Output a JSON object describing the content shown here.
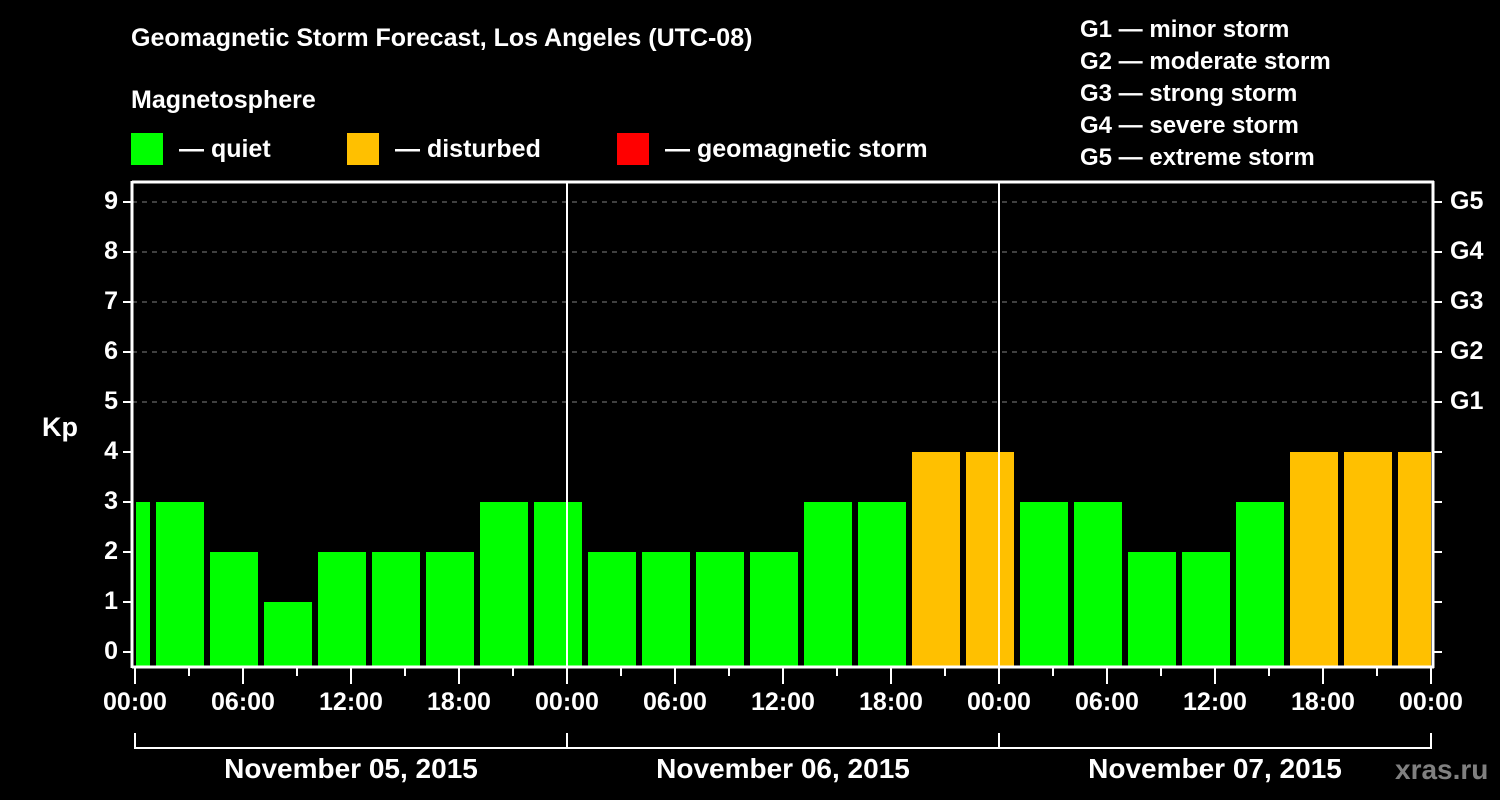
{
  "title": "Geomagnetic Storm Forecast, Los Angeles (UTC-08)",
  "magnetosphere_label": "Magnetosphere",
  "legend": [
    {
      "label": "— quiet",
      "color": "#00ff00"
    },
    {
      "label": "— disturbed",
      "color": "#ffc000"
    },
    {
      "label": "— geomagnetic storm",
      "color": "#ff0000"
    }
  ],
  "g_scale": [
    "G1 — minor storm",
    "G2 — moderate storm",
    "G3 — strong storm",
    "G4 — severe storm",
    "G5 — extreme storm"
  ],
  "brand": "xras.ru",
  "chart_data": {
    "type": "bar",
    "title": "Geomagnetic Storm Forecast, Los Angeles (UTC-08)",
    "xlabel": "",
    "ylabel": "Kp",
    "ylim": [
      0,
      9
    ],
    "yticks": [
      0,
      1,
      2,
      3,
      4,
      5,
      6,
      7,
      8,
      9
    ],
    "y2ticks": [
      {
        "kp": 5,
        "label": "G1"
      },
      {
        "kp": 6,
        "label": "G2"
      },
      {
        "kp": 7,
        "label": "G3"
      },
      {
        "kp": 8,
        "label": "G4"
      },
      {
        "kp": 9,
        "label": "G5"
      }
    ],
    "xticks": [
      "00:00",
      "06:00",
      "12:00",
      "18:00",
      "00:00",
      "06:00",
      "12:00",
      "18:00",
      "00:00",
      "06:00",
      "12:00",
      "18:00",
      "00:00"
    ],
    "dates": [
      "November 05, 2015",
      "November 06, 2015",
      "November 07, 2015"
    ],
    "grid": "dashed horizontal at Kp 5-9",
    "interval_hours": 3,
    "categories": [
      "Nov 05 00:00-01:00",
      "Nov 05 01:00-04:00",
      "Nov 05 04:00-07:00",
      "Nov 05 07:00-10:00",
      "Nov 05 10:00-13:00",
      "Nov 05 13:00-16:00",
      "Nov 05 16:00-19:00",
      "Nov 05 19:00-22:00",
      "Nov 05 22:00-01:00",
      "Nov 06 01:00-04:00",
      "Nov 06 04:00-07:00",
      "Nov 06 07:00-10:00",
      "Nov 06 10:00-13:00",
      "Nov 06 13:00-16:00",
      "Nov 06 16:00-19:00",
      "Nov 06 19:00-22:00",
      "Nov 06 22:00-01:00",
      "Nov 07 01:00-04:00",
      "Nov 07 04:00-07:00",
      "Nov 07 07:00-10:00",
      "Nov 07 10:00-13:00",
      "Nov 07 13:00-16:00",
      "Nov 07 16:00-19:00",
      "Nov 07 19:00-22:00",
      "Nov 07 22:00-00:00"
    ],
    "values": [
      3,
      3,
      2,
      1,
      2,
      2,
      2,
      3,
      3,
      2,
      2,
      2,
      2,
      3,
      3,
      4,
      4,
      3,
      3,
      2,
      2,
      3,
      4,
      4,
      4
    ],
    "bar_start_hours": [
      -2,
      1,
      4,
      7,
      10,
      13,
      16,
      19,
      22,
      25,
      28,
      31,
      34,
      37,
      40,
      43,
      46,
      49,
      52,
      55,
      58,
      61,
      64,
      67,
      70
    ],
    "status": [
      "quiet",
      "quiet",
      "quiet",
      "quiet",
      "quiet",
      "quiet",
      "quiet",
      "quiet",
      "quiet",
      "quiet",
      "quiet",
      "quiet",
      "quiet",
      "quiet",
      "quiet",
      "disturbed",
      "disturbed",
      "quiet",
      "quiet",
      "quiet",
      "quiet",
      "quiet",
      "disturbed",
      "disturbed",
      "disturbed"
    ],
    "colors": {
      "quiet": "#00ff00",
      "disturbed": "#ffc000",
      "storm": "#ff0000"
    }
  }
}
